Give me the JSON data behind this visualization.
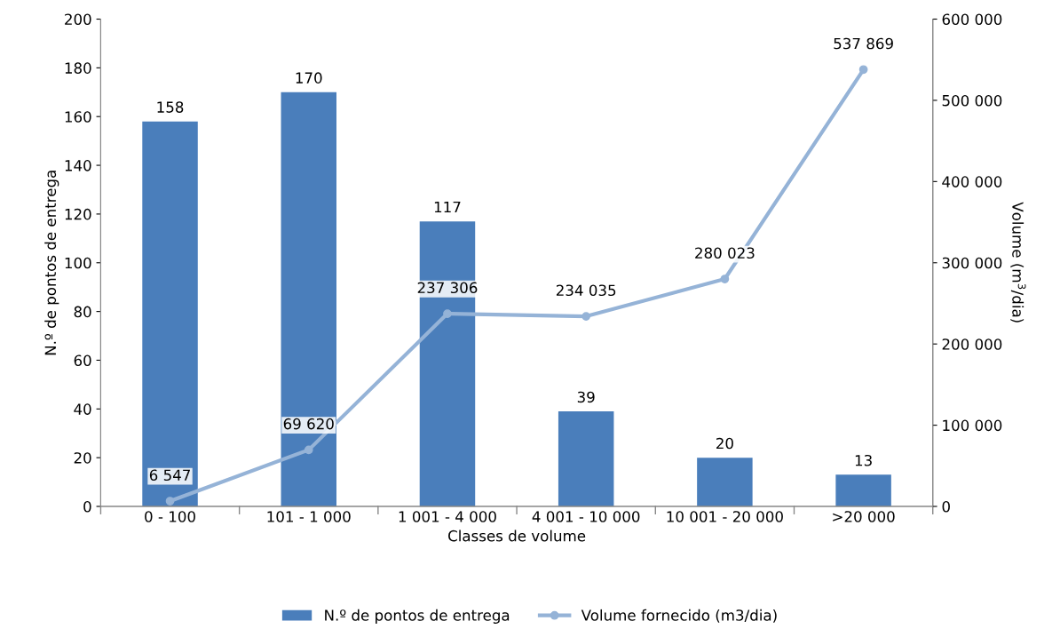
{
  "chart_data": {
    "type": "bar",
    "xlabel": "Classes de volume",
    "ylabel": "N.º de pontos de entrega",
    "y2label": "Volume (m$^{3}$/dia)",
    "categories": [
      "0 - 100",
      "101 - 1 000",
      "1 001 - 4 000",
      "4 001 - 10 000",
      "10 001 - 20 000",
      ">20 000"
    ],
    "series": [
      {
        "name": "N.º de pontos de entrega",
        "color": "#4a7ebb",
        "values": [
          158,
          170,
          117,
          39,
          20,
          13
        ],
        "value_labels": [
          "158",
          "170",
          "117",
          "39",
          "20",
          "13"
        ]
      },
      {
        "name": "Volume fornecido (m3/dia)",
        "type": "line",
        "axis": "y2",
        "color": "#95b3d7",
        "marker": "circle",
        "line_style": "solid",
        "values": [
          6547,
          69620,
          237306,
          234035,
          280023,
          537869
        ],
        "value_labels": [
          "6 547",
          "69 620",
          "237 306",
          "234 035",
          "280 023",
          "537 869"
        ]
      }
    ],
    "ylim": [
      0,
      200
    ],
    "yticks": [
      0,
      20,
      40,
      60,
      80,
      100,
      120,
      140,
      160,
      180,
      200
    ],
    "y2lim": [
      0,
      600000
    ],
    "y2ticks": [
      0,
      {
        "value": 100000,
        "label": "100 000"
      },
      {
        "value": 200000,
        "label": "200 000"
      },
      {
        "value": 300000,
        "label": "300 000"
      },
      {
        "value": 400000,
        "label": "400 000"
      },
      {
        "value": 500000,
        "label": "500 000"
      },
      {
        "value": 600000,
        "label": "600 000"
      }
    ],
    "grid": false,
    "legend": "bottom"
  }
}
